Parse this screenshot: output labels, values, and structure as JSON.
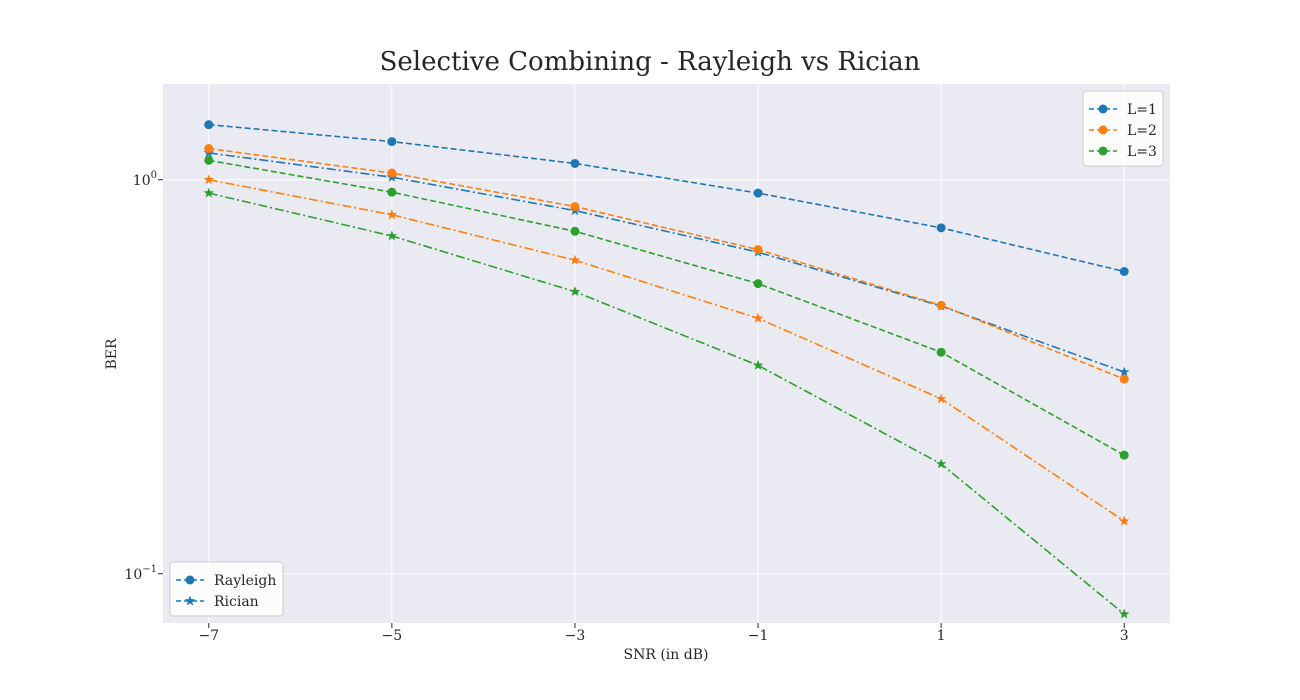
{
  "chart_data": {
    "type": "line",
    "title": "Selective Combining - Rayleigh vs Rician",
    "xlabel": "SNR (in dB)",
    "ylabel": "BER",
    "x": [
      -7,
      -5,
      -3,
      -1,
      1,
      3
    ],
    "x_tick_labels": [
      "−7",
      "−5",
      "−3",
      "−1",
      "1",
      "3"
    ],
    "xlim": [
      -7.5,
      3.5
    ],
    "yscale": "log",
    "ylim": [
      0.075,
      1.75
    ],
    "y_ticks": [
      {
        "value": 1,
        "base": "10",
        "exp": "0"
      },
      {
        "value": 0.1,
        "base": "10",
        "exp": "−1"
      }
    ],
    "grid": true,
    "series": [
      {
        "name": "L=1",
        "fading": "Rayleigh",
        "color": "#1f77b4",
        "marker": "circle",
        "linestyle": "dashed",
        "values": [
          1.38,
          1.25,
          1.1,
          0.925,
          0.755,
          0.585
        ]
      },
      {
        "name": "L=1",
        "fading": "Rician",
        "color": "#1f77b4",
        "marker": "star",
        "linestyle": "dashdot",
        "values": [
          1.17,
          1.015,
          0.835,
          0.655,
          0.478,
          0.325
        ]
      },
      {
        "name": "L=2",
        "fading": "Rayleigh",
        "color": "#ff7f0e",
        "marker": "circle",
        "linestyle": "dashed",
        "values": [
          1.2,
          1.04,
          0.855,
          0.665,
          0.48,
          0.312
        ]
      },
      {
        "name": "L=2",
        "fading": "Rician",
        "color": "#ff7f0e",
        "marker": "star",
        "linestyle": "dashdot",
        "values": [
          1.0,
          0.815,
          0.625,
          0.445,
          0.278,
          0.136
        ]
      },
      {
        "name": "L=3",
        "fading": "Rayleigh",
        "color": "#2ca02c",
        "marker": "circle",
        "linestyle": "dashed",
        "values": [
          1.12,
          0.93,
          0.74,
          0.545,
          0.365,
          0.2
        ]
      },
      {
        "name": "L=3",
        "fading": "Rician",
        "color": "#2ca02c",
        "marker": "star",
        "linestyle": "dashdot",
        "values": [
          0.925,
          0.72,
          0.52,
          0.338,
          0.19,
          0.079
        ]
      }
    ],
    "legend_series": {
      "placement": "top-right",
      "entries": [
        {
          "label": "L=1",
          "color": "#1f77b4"
        },
        {
          "label": "L=2",
          "color": "#ff7f0e"
        },
        {
          "label": "L=3",
          "color": "#2ca02c"
        }
      ]
    },
    "legend_fading": {
      "placement": "bottom-left",
      "entries": [
        {
          "label": "Rayleigh",
          "marker": "circle"
        },
        {
          "label": "Rician",
          "marker": "star"
        }
      ]
    },
    "colors": {
      "plot_background": "#eaeaf2",
      "grid": "#ffffff",
      "text": "#262626",
      "marker_legend": "#1f77b4"
    }
  }
}
